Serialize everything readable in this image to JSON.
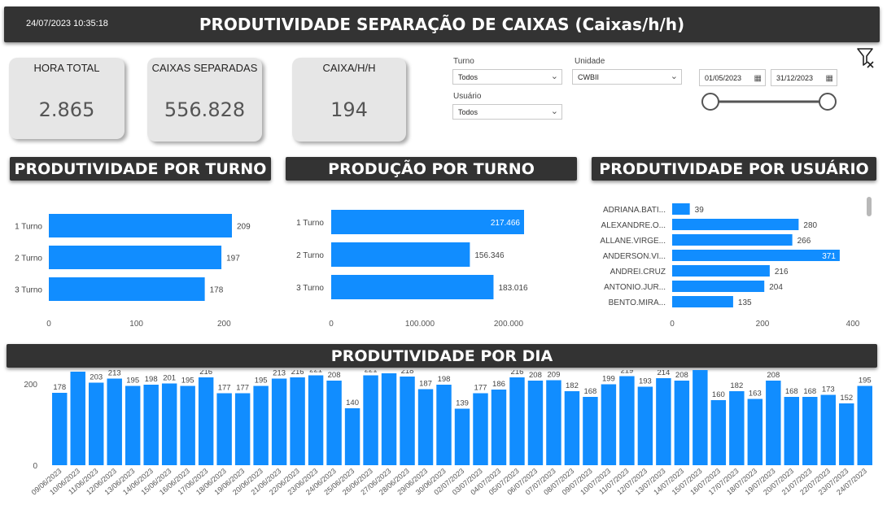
{
  "header": {
    "timestamp": "24/07/2023 10:35:18",
    "title": "PRODUTIVIDADE SEPARAÇÃO DE CAIXAS (Caixas/h/h)"
  },
  "kpis": [
    {
      "label": "HORA TOTAL",
      "value": "2.865"
    },
    {
      "label": "CAIXAS SEPARADAS",
      "value": "556.828"
    },
    {
      "label": "CAIXA/H/H",
      "value": "194"
    }
  ],
  "filters": {
    "turno": {
      "label": "Turno",
      "value": "Todos"
    },
    "unidade": {
      "label": "Unidade",
      "value": "CWBII"
    },
    "usuario": {
      "label": "Usuário",
      "value": "Todos"
    },
    "date_start": "01/05/2023",
    "date_end": "31/12/2023"
  },
  "colors": {
    "bar": "#118DFF",
    "title_bg": "#333333",
    "card_bg": "#e6e6e6"
  },
  "icons": {
    "filter": "filter-icon",
    "calendar": "calendar-icon",
    "chevron": "chevron-down-icon"
  },
  "sections": {
    "turno_prod": "PRODUTIVIDADE POR TURNO",
    "turno_producao": "PRODUÇÃO POR TURNO",
    "usuario": "PRODUTIVIDADE POR USUÁRIO",
    "dia": "PRODUTIVIDADE POR DIA"
  },
  "chart_data": [
    {
      "type": "bar",
      "orientation": "horizontal",
      "categories": [
        "1 Turno",
        "2 Turno",
        "3 Turno"
      ],
      "values": [
        209,
        197,
        178
      ],
      "labels": [
        "209",
        "197",
        "178"
      ],
      "xlim": [
        0,
        209
      ],
      "ticks": [
        0,
        100,
        200
      ],
      "tick_labels": [
        "0",
        "100",
        "200"
      ]
    },
    {
      "type": "bar",
      "orientation": "horizontal",
      "categories": [
        "1 Turno",
        "2 Turno",
        "3 Turno"
      ],
      "values": [
        217466,
        156346,
        183016
      ],
      "labels": [
        "217.466",
        "156.346",
        "183.016"
      ],
      "xlim": [
        0,
        217466
      ],
      "ticks": [
        0,
        100000,
        200000
      ],
      "tick_labels": [
        "0",
        "100.000",
        "200.000"
      ]
    },
    {
      "type": "bar",
      "orientation": "horizontal",
      "categories": [
        "ADRIANA.BATI...",
        "ALEXANDRE.O...",
        "ALLANE.VIRGE...",
        "ANDERSON.VI...",
        "ANDREI.CRUZ",
        "ANTONIO.JUR...",
        "BENTO.MIRA..."
      ],
      "values": [
        39,
        280,
        266,
        371,
        216,
        204,
        135
      ],
      "labels": [
        "39",
        "280",
        "266",
        "371",
        "216",
        "204",
        "135"
      ],
      "xlim": [
        0,
        400
      ],
      "ticks": [
        0,
        200,
        400
      ],
      "tick_labels": [
        "0",
        "200",
        "400"
      ]
    },
    {
      "type": "bar",
      "orientation": "vertical",
      "categories": [
        "09/06/2023",
        "10/06/2023",
        "11/06/2023",
        "12/06/2023",
        "13/06/2023",
        "14/06/2023",
        "15/06/2023",
        "16/06/2023",
        "17/06/2023",
        "18/06/2023",
        "19/06/2023",
        "20/06/2023",
        "21/06/2023",
        "22/06/2023",
        "23/06/2023",
        "24/06/2023",
        "25/06/2023",
        "26/06/2023",
        "27/06/2023",
        "28/06/2023",
        "29/06/2023",
        "30/06/2023",
        "02/07/2023",
        "03/07/2023",
        "04/07/2023",
        "05/07/2023",
        "06/07/2023",
        "07/07/2023",
        "08/07/2023",
        "09/07/2023",
        "10/07/2023",
        "11/07/2023",
        "12/07/2023",
        "13/07/2023",
        "14/07/2023",
        "15/07/2023",
        "16/07/2023",
        "17/07/2023",
        "18/07/2023",
        "19/07/2023",
        "20/07/2023",
        "21/07/2023",
        "22/07/2023",
        "23/07/2023",
        "24/07/2023"
      ],
      "values": [
        178,
        230,
        203,
        213,
        195,
        198,
        201,
        195,
        216,
        177,
        177,
        195,
        213,
        216,
        221,
        208,
        140,
        221,
        226,
        218,
        187,
        198,
        139,
        177,
        186,
        216,
        208,
        209,
        182,
        168,
        199,
        219,
        193,
        214,
        208,
        251,
        160,
        182,
        163,
        208,
        168,
        168,
        173,
        152,
        195
      ],
      "ylim": [
        0,
        251
      ],
      "ticks": [
        0,
        200
      ],
      "tick_labels": [
        "0",
        "200"
      ]
    }
  ]
}
